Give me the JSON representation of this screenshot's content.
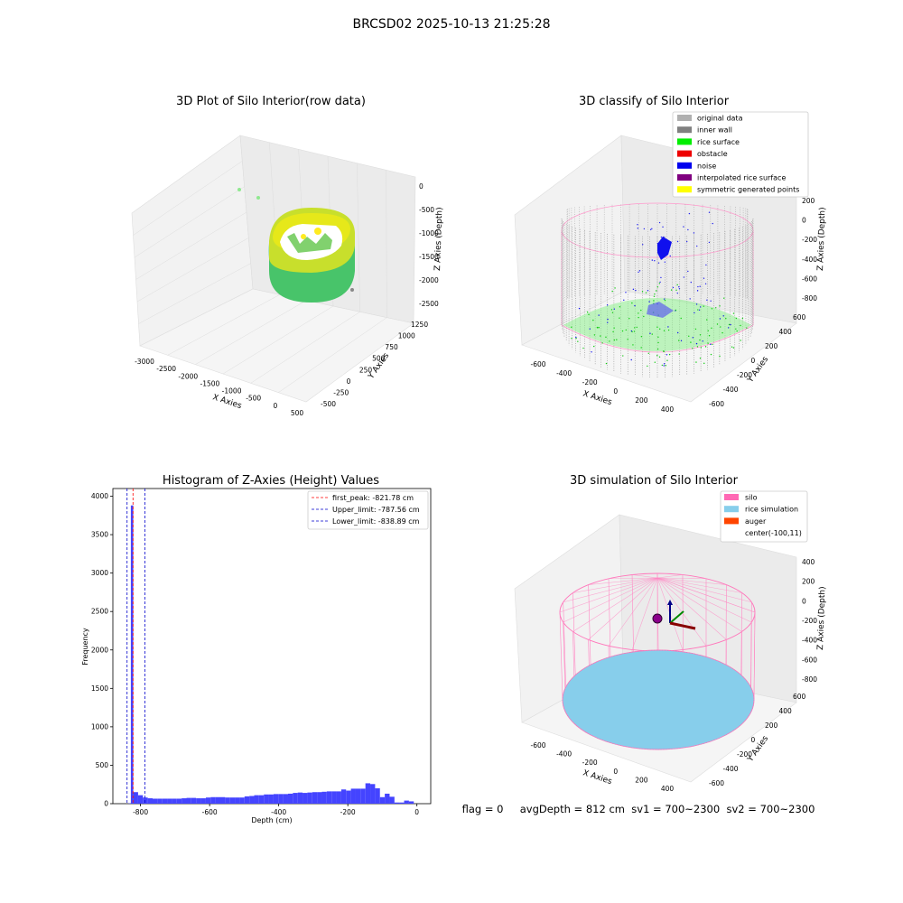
{
  "figure": {
    "suptitle": "BRCSD02 2025-10-13 21:25:28",
    "status_line": "flag = 0     avgDepth = 812 cm  sv1 = 700~2300  sv2 = 700~2300"
  },
  "panels": {
    "raw": {
      "title": "3D Plot of Silo Interior(row data)",
      "xlabel": "X Axies",
      "ylabel": "Y Axies",
      "zlabel": "Z Axies (Depth)",
      "xticks": [
        "-3000",
        "-2500",
        "-2000",
        "-1500",
        "-1000",
        "-500",
        "0",
        "500"
      ],
      "yticks": [
        "-500",
        "-250",
        "0",
        "250",
        "500",
        "750",
        "1000",
        "1250"
      ],
      "zticks": [
        "0",
        "-500",
        "-1000",
        "-1500",
        "-2000",
        "-2500"
      ]
    },
    "classify": {
      "title": "3D classify of Silo Interior",
      "xlabel": "X Axies",
      "ylabel": "Y Axies",
      "zlabel": "Z Axies (Depth)",
      "xticks": [
        "-600",
        "-400",
        "-200",
        "0",
        "200",
        "400"
      ],
      "yticks": [
        "-600",
        "-400",
        "-200",
        "0",
        "200",
        "400",
        "600"
      ],
      "zticks": [
        "200",
        "0",
        "-200",
        "-400",
        "-600",
        "-800"
      ],
      "legend": [
        {
          "label": "original data",
          "color": "#b0b0b0"
        },
        {
          "label": "inner wall",
          "color": "#808080"
        },
        {
          "label": "rice surface",
          "color": "#00ee00"
        },
        {
          "label": "obstacle",
          "color": "#ee0000"
        },
        {
          "label": "noise",
          "color": "#0000ee"
        },
        {
          "label": "interpolated rice surface",
          "color": "#800080"
        },
        {
          "label": "symmetric generated points",
          "color": "#ffff00"
        }
      ]
    },
    "simulation": {
      "title": "3D simulation of Silo Interior",
      "xlabel": "X Axies",
      "ylabel": "Y Axies",
      "zlabel": "Z Axies (Depth)",
      "xticks": [
        "-600",
        "-400",
        "-200",
        "0",
        "200",
        "400"
      ],
      "yticks": [
        "-600",
        "-400",
        "-200",
        "0",
        "200",
        "400",
        "600"
      ],
      "zticks": [
        "400",
        "200",
        "0",
        "-200",
        "-400",
        "-600",
        "-800"
      ],
      "legend": [
        {
          "label": "silo",
          "color": "#ff69b4"
        },
        {
          "label": "rice simulation",
          "color": "#87ceeb"
        },
        {
          "label": "auger",
          "color": "#ff4500"
        },
        {
          "label": "center(-100,11)",
          "color": ""
        }
      ]
    }
  },
  "chart_data": [
    {
      "type": "bar",
      "title": "Histogram of Z-Axies (Height) Values",
      "xlabel": "Depth (cm)",
      "ylabel": "Frequency",
      "xlim": [
        -880,
        40
      ],
      "ylim": [
        0,
        4100
      ],
      "bar_color": "#4444ff",
      "xticks": [
        -800,
        -600,
        -400,
        -200,
        0
      ],
      "yticks": [
        0,
        500,
        1000,
        1500,
        2000,
        2500,
        3000,
        3500,
        4000
      ],
      "bins": [
        {
          "x0": -835,
          "x1": -828,
          "value": 5
        },
        {
          "x0": -828,
          "x1": -821,
          "value": 3880
        },
        {
          "x0": -821,
          "x1": -807,
          "value": 150
        },
        {
          "x0": -807,
          "x1": -793,
          "value": 110
        },
        {
          "x0": -793,
          "x1": -779,
          "value": 80
        },
        {
          "x0": -779,
          "x1": -765,
          "value": 70
        },
        {
          "x0": -765,
          "x1": -751,
          "value": 65
        },
        {
          "x0": -751,
          "x1": -737,
          "value": 65
        },
        {
          "x0": -737,
          "x1": -723,
          "value": 65
        },
        {
          "x0": -723,
          "x1": -709,
          "value": 65
        },
        {
          "x0": -709,
          "x1": -695,
          "value": 65
        },
        {
          "x0": -695,
          "x1": -681,
          "value": 65
        },
        {
          "x0": -681,
          "x1": -667,
          "value": 70
        },
        {
          "x0": -667,
          "x1": -653,
          "value": 75
        },
        {
          "x0": -653,
          "x1": -639,
          "value": 75
        },
        {
          "x0": -639,
          "x1": -625,
          "value": 70
        },
        {
          "x0": -625,
          "x1": -611,
          "value": 70
        },
        {
          "x0": -611,
          "x1": -597,
          "value": 80
        },
        {
          "x0": -597,
          "x1": -583,
          "value": 85
        },
        {
          "x0": -583,
          "x1": -569,
          "value": 85
        },
        {
          "x0": -569,
          "x1": -555,
          "value": 85
        },
        {
          "x0": -555,
          "x1": -541,
          "value": 80
        },
        {
          "x0": -541,
          "x1": -527,
          "value": 80
        },
        {
          "x0": -527,
          "x1": -513,
          "value": 80
        },
        {
          "x0": -513,
          "x1": -499,
          "value": 80
        },
        {
          "x0": -499,
          "x1": -485,
          "value": 95
        },
        {
          "x0": -485,
          "x1": -471,
          "value": 100
        },
        {
          "x0": -471,
          "x1": -457,
          "value": 110
        },
        {
          "x0": -457,
          "x1": -443,
          "value": 110
        },
        {
          "x0": -443,
          "x1": -429,
          "value": 120
        },
        {
          "x0": -429,
          "x1": -415,
          "value": 120
        },
        {
          "x0": -415,
          "x1": -401,
          "value": 125
        },
        {
          "x0": -401,
          "x1": -387,
          "value": 125
        },
        {
          "x0": -387,
          "x1": -373,
          "value": 125
        },
        {
          "x0": -373,
          "x1": -359,
          "value": 130
        },
        {
          "x0": -359,
          "x1": -345,
          "value": 140
        },
        {
          "x0": -345,
          "x1": -331,
          "value": 145
        },
        {
          "x0": -331,
          "x1": -317,
          "value": 140
        },
        {
          "x0": -317,
          "x1": -303,
          "value": 145
        },
        {
          "x0": -303,
          "x1": -289,
          "value": 150
        },
        {
          "x0": -289,
          "x1": -275,
          "value": 150
        },
        {
          "x0": -275,
          "x1": -261,
          "value": 155
        },
        {
          "x0": -261,
          "x1": -247,
          "value": 160
        },
        {
          "x0": -247,
          "x1": -233,
          "value": 160
        },
        {
          "x0": -233,
          "x1": -219,
          "value": 160
        },
        {
          "x0": -219,
          "x1": -205,
          "value": 185
        },
        {
          "x0": -205,
          "x1": -191,
          "value": 170
        },
        {
          "x0": -191,
          "x1": -177,
          "value": 195
        },
        {
          "x0": -177,
          "x1": -163,
          "value": 195
        },
        {
          "x0": -163,
          "x1": -149,
          "value": 195
        },
        {
          "x0": -149,
          "x1": -135,
          "value": 265
        },
        {
          "x0": -135,
          "x1": -121,
          "value": 255
        },
        {
          "x0": -121,
          "x1": -107,
          "value": 200
        },
        {
          "x0": -107,
          "x1": -93,
          "value": 85
        },
        {
          "x0": -93,
          "x1": -79,
          "value": 130
        },
        {
          "x0": -79,
          "x1": -65,
          "value": 90
        },
        {
          "x0": -65,
          "x1": -51,
          "value": 15
        },
        {
          "x0": -51,
          "x1": -37,
          "value": 15
        },
        {
          "x0": -37,
          "x1": -23,
          "value": 40
        },
        {
          "x0": -23,
          "x1": -9,
          "value": 30
        }
      ],
      "vlines": [
        {
          "x": -821.78,
          "color": "#ff0000",
          "label": "first_peak: -821.78 cm"
        },
        {
          "x": -787.56,
          "color": "#0000cc",
          "label": "Upper_limit: -787.56 cm"
        },
        {
          "x": -838.89,
          "color": "#0000cc",
          "label": "Lower_limit: -838.89 cm"
        }
      ]
    }
  ]
}
